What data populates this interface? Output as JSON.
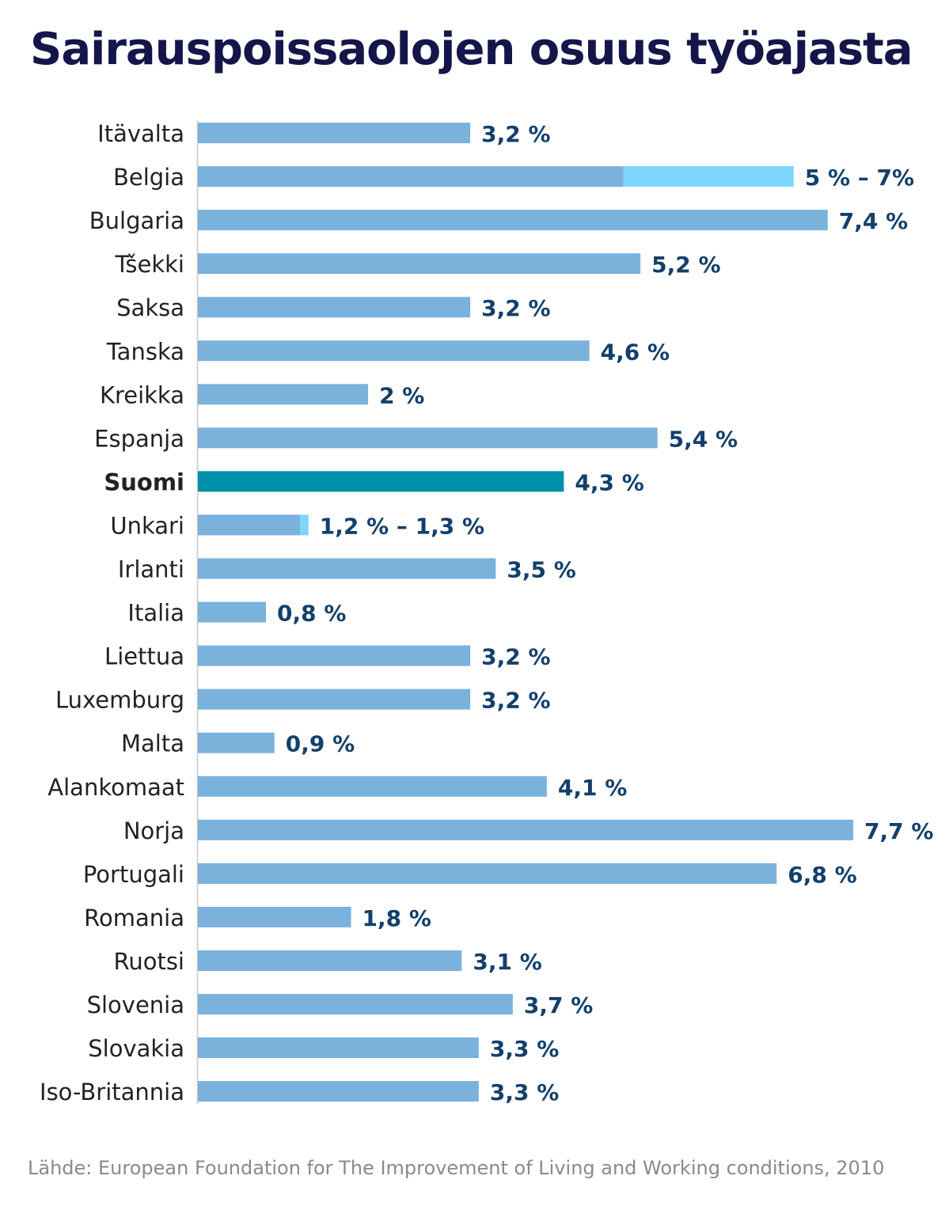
{
  "chart_data": {
    "type": "bar",
    "orientation": "horizontal",
    "title": "Sairauspoissaolojen osuus työajasta",
    "source": "Lähde: European Foundation for The Improvement of Living and Working conditions, 2010",
    "xlim": [
      0,
      7.7
    ],
    "colors": {
      "bar": "#7ab2dc",
      "range": "#7dd6fb",
      "highlight": "#0090ab",
      "value_text": "#13406b",
      "label_text": "#222222"
    },
    "rows": [
      {
        "category": "Itävalta",
        "value": 3.2,
        "label": "3,2 %"
      },
      {
        "category": "Belgia",
        "value": 5,
        "max": 7,
        "label": "5 % – 7%"
      },
      {
        "category": "Bulgaria",
        "value": 7.4,
        "label": "7,4 %"
      },
      {
        "category": "Tšekki",
        "value": 5.2,
        "label": "5,2 %"
      },
      {
        "category": "Saksa",
        "value": 3.2,
        "label": "3,2 %"
      },
      {
        "category": "Tanska",
        "value": 4.6,
        "label": "4,6 %"
      },
      {
        "category": "Kreikka",
        "value": 2,
        "label": "2 %"
      },
      {
        "category": "Espanja",
        "value": 5.4,
        "label": "5,4 %"
      },
      {
        "category": "Suomi",
        "value": 4.3,
        "label": "4,3 %",
        "highlight": true
      },
      {
        "category": "Unkari",
        "value": 1.2,
        "max": 1.3,
        "label": "1,2 % – 1,3 %"
      },
      {
        "category": "Irlanti",
        "value": 3.5,
        "label": "3,5 %"
      },
      {
        "category": "Italia",
        "value": 0.8,
        "label": "0,8 %"
      },
      {
        "category": "Liettua",
        "value": 3.2,
        "label": "3,2 %"
      },
      {
        "category": "Luxemburg",
        "value": 3.2,
        "label": "3,2 %"
      },
      {
        "category": "Malta",
        "value": 0.9,
        "label": "0,9 %"
      },
      {
        "category": "Alankomaat",
        "value": 4.1,
        "label": "4,1 %"
      },
      {
        "category": "Norja",
        "value": 7.7,
        "label": "7,7 %"
      },
      {
        "category": "Portugali",
        "value": 6.8,
        "label": "6,8 %"
      },
      {
        "category": "Romania",
        "value": 1.8,
        "label": "1,8 %"
      },
      {
        "category": "Ruotsi",
        "value": 3.1,
        "label": "3,1 %"
      },
      {
        "category": "Slovenia",
        "value": 3.7,
        "label": "3,7 %"
      },
      {
        "category": "Slovakia",
        "value": 3.3,
        "label": "3,3 %"
      },
      {
        "category": "Iso-Britannia",
        "value": 3.3,
        "label": "3,3 %"
      }
    ]
  }
}
